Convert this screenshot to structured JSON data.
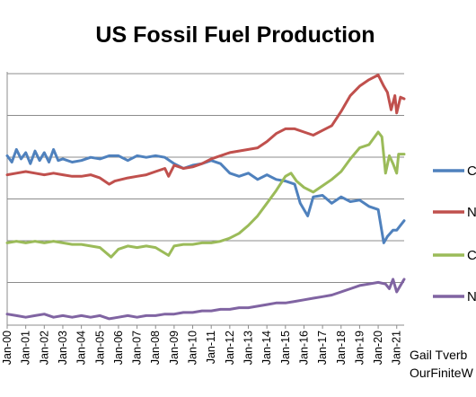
{
  "chart_data": {
    "type": "line",
    "title": "US Fossil Fuel Production",
    "xlabel": "",
    "ylabel": "",
    "x_tick_labels": [
      "Jan-00",
      "Jan-01",
      "Jan-02",
      "Jan-03",
      "Jan-04",
      "Jan-05",
      "Jan-06",
      "Jan-07",
      "Jan-08",
      "Jan-09",
      "Jan-10",
      "Jan-11",
      "Jan-12",
      "Jan-13",
      "Jan-14",
      "Jan-15",
      "Jan-16",
      "Jan-17",
      "Jan-18",
      "Jan-19",
      "Jan-20",
      "Jan-21"
    ],
    "x_range": [
      2000.0,
      2021.4
    ],
    "y_gridlines": 6,
    "grid": "horizontal",
    "legend_position": "right",
    "series": [
      {
        "name": "C",
        "color": "#4f81bd",
        "values": [
          [
            2000.0,
            4.35
          ],
          [
            2000.25,
            4.15
          ],
          [
            2000.5,
            4.55
          ],
          [
            2000.75,
            4.25
          ],
          [
            2001.0,
            4.45
          ],
          [
            2001.25,
            4.1
          ],
          [
            2001.5,
            4.5
          ],
          [
            2001.75,
            4.2
          ],
          [
            2002.0,
            4.45
          ],
          [
            2002.25,
            4.15
          ],
          [
            2002.5,
            4.55
          ],
          [
            2002.75,
            4.2
          ],
          [
            2003.0,
            4.25
          ],
          [
            2003.5,
            4.15
          ],
          [
            2004.0,
            4.2
          ],
          [
            2004.5,
            4.3
          ],
          [
            2005.0,
            4.25
          ],
          [
            2005.5,
            4.35
          ],
          [
            2006.0,
            4.35
          ],
          [
            2006.5,
            4.2
          ],
          [
            2007.0,
            4.35
          ],
          [
            2007.5,
            4.3
          ],
          [
            2008.0,
            4.35
          ],
          [
            2008.5,
            4.3
          ],
          [
            2009.0,
            4.1
          ],
          [
            2009.5,
            3.95
          ],
          [
            2010.0,
            4.05
          ],
          [
            2010.5,
            4.1
          ],
          [
            2011.0,
            4.2
          ],
          [
            2011.5,
            4.1
          ],
          [
            2012.0,
            3.8
          ],
          [
            2012.5,
            3.7
          ],
          [
            2013.0,
            3.8
          ],
          [
            2013.5,
            3.6
          ],
          [
            2014.0,
            3.75
          ],
          [
            2014.5,
            3.6
          ],
          [
            2015.0,
            3.55
          ],
          [
            2015.5,
            3.45
          ],
          [
            2015.8,
            2.85
          ],
          [
            2016.2,
            2.45
          ],
          [
            2016.5,
            3.05
          ],
          [
            2017.0,
            3.1
          ],
          [
            2017.5,
            2.85
          ],
          [
            2018.0,
            3.05
          ],
          [
            2018.5,
            2.9
          ],
          [
            2019.0,
            2.95
          ],
          [
            2019.5,
            2.75
          ],
          [
            2020.0,
            2.65
          ],
          [
            2020.3,
            1.6
          ],
          [
            2020.5,
            1.8
          ],
          [
            2020.8,
            2.0
          ],
          [
            2021.0,
            2.0
          ],
          [
            2021.4,
            2.3
          ]
        ]
      },
      {
        "name": "N",
        "color": "#c0504d",
        "values": [
          [
            2000.0,
            3.75
          ],
          [
            2000.5,
            3.8
          ],
          [
            2001.0,
            3.85
          ],
          [
            2001.5,
            3.8
          ],
          [
            2002.0,
            3.75
          ],
          [
            2002.5,
            3.8
          ],
          [
            2003.0,
            3.75
          ],
          [
            2003.5,
            3.7
          ],
          [
            2004.0,
            3.7
          ],
          [
            2004.5,
            3.75
          ],
          [
            2005.0,
            3.65
          ],
          [
            2005.5,
            3.45
          ],
          [
            2005.8,
            3.55
          ],
          [
            2006.5,
            3.65
          ],
          [
            2007.0,
            3.7
          ],
          [
            2007.5,
            3.75
          ],
          [
            2008.0,
            3.85
          ],
          [
            2008.5,
            3.95
          ],
          [
            2008.7,
            3.7
          ],
          [
            2009.0,
            4.05
          ],
          [
            2009.5,
            3.95
          ],
          [
            2010.0,
            4.0
          ],
          [
            2010.5,
            4.1
          ],
          [
            2011.0,
            4.25
          ],
          [
            2011.5,
            4.35
          ],
          [
            2012.0,
            4.45
          ],
          [
            2012.5,
            4.5
          ],
          [
            2013.0,
            4.55
          ],
          [
            2013.5,
            4.6
          ],
          [
            2014.0,
            4.8
          ],
          [
            2014.5,
            5.05
          ],
          [
            2015.0,
            5.2
          ],
          [
            2015.5,
            5.2
          ],
          [
            2016.0,
            5.1
          ],
          [
            2016.5,
            5.0
          ],
          [
            2017.0,
            5.15
          ],
          [
            2017.5,
            5.3
          ],
          [
            2018.0,
            5.75
          ],
          [
            2018.5,
            6.25
          ],
          [
            2019.0,
            6.55
          ],
          [
            2019.5,
            6.75
          ],
          [
            2020.0,
            6.9
          ],
          [
            2020.3,
            6.55
          ],
          [
            2020.5,
            6.35
          ],
          [
            2020.7,
            5.8
          ],
          [
            2020.9,
            6.25
          ],
          [
            2021.0,
            5.7
          ],
          [
            2021.2,
            6.2
          ],
          [
            2021.4,
            6.15
          ]
        ]
      },
      {
        "name": "C",
        "color": "#9bbb59",
        "values": [
          [
            2000.0,
            1.6
          ],
          [
            2000.5,
            1.65
          ],
          [
            2001.0,
            1.6
          ],
          [
            2001.5,
            1.65
          ],
          [
            2002.0,
            1.6
          ],
          [
            2002.5,
            1.65
          ],
          [
            2003.0,
            1.6
          ],
          [
            2003.5,
            1.55
          ],
          [
            2004.0,
            1.55
          ],
          [
            2004.5,
            1.5
          ],
          [
            2005.0,
            1.45
          ],
          [
            2005.6,
            1.15
          ],
          [
            2006.0,
            1.4
          ],
          [
            2006.5,
            1.5
          ],
          [
            2007.0,
            1.45
          ],
          [
            2007.5,
            1.5
          ],
          [
            2008.0,
            1.45
          ],
          [
            2008.7,
            1.2
          ],
          [
            2009.0,
            1.5
          ],
          [
            2009.5,
            1.55
          ],
          [
            2010.0,
            1.55
          ],
          [
            2010.5,
            1.6
          ],
          [
            2011.0,
            1.6
          ],
          [
            2011.5,
            1.65
          ],
          [
            2012.0,
            1.75
          ],
          [
            2012.5,
            1.9
          ],
          [
            2013.0,
            2.15
          ],
          [
            2013.5,
            2.45
          ],
          [
            2014.0,
            2.85
          ],
          [
            2014.5,
            3.25
          ],
          [
            2015.0,
            3.7
          ],
          [
            2015.3,
            3.8
          ],
          [
            2015.6,
            3.55
          ],
          [
            2016.0,
            3.35
          ],
          [
            2016.5,
            3.2
          ],
          [
            2017.0,
            3.4
          ],
          [
            2017.5,
            3.6
          ],
          [
            2018.0,
            3.85
          ],
          [
            2018.5,
            4.25
          ],
          [
            2019.0,
            4.6
          ],
          [
            2019.5,
            4.7
          ],
          [
            2020.0,
            5.1
          ],
          [
            2020.2,
            4.95
          ],
          [
            2020.4,
            3.8
          ],
          [
            2020.6,
            4.35
          ],
          [
            2020.8,
            4.1
          ],
          [
            2021.0,
            3.8
          ],
          [
            2021.1,
            4.4
          ],
          [
            2021.4,
            4.4
          ]
        ]
      },
      {
        "name": "N",
        "color": "#8064a2",
        "values": [
          [
            2000.0,
            -0.65
          ],
          [
            2000.5,
            -0.7
          ],
          [
            2001.0,
            -0.75
          ],
          [
            2001.5,
            -0.7
          ],
          [
            2002.0,
            -0.65
          ],
          [
            2002.5,
            -0.75
          ],
          [
            2003.0,
            -0.7
          ],
          [
            2003.5,
            -0.75
          ],
          [
            2004.0,
            -0.7
          ],
          [
            2004.5,
            -0.75
          ],
          [
            2005.0,
            -0.7
          ],
          [
            2005.5,
            -0.8
          ],
          [
            2006.0,
            -0.75
          ],
          [
            2006.5,
            -0.7
          ],
          [
            2007.0,
            -0.75
          ],
          [
            2007.5,
            -0.7
          ],
          [
            2008.0,
            -0.7
          ],
          [
            2008.5,
            -0.65
          ],
          [
            2009.0,
            -0.65
          ],
          [
            2009.5,
            -0.6
          ],
          [
            2010.0,
            -0.6
          ],
          [
            2010.5,
            -0.55
          ],
          [
            2011.0,
            -0.55
          ],
          [
            2011.5,
            -0.5
          ],
          [
            2012.0,
            -0.5
          ],
          [
            2012.5,
            -0.45
          ],
          [
            2013.0,
            -0.45
          ],
          [
            2013.5,
            -0.4
          ],
          [
            2014.0,
            -0.35
          ],
          [
            2014.5,
            -0.3
          ],
          [
            2015.0,
            -0.3
          ],
          [
            2015.5,
            -0.25
          ],
          [
            2016.0,
            -0.2
          ],
          [
            2016.5,
            -0.15
          ],
          [
            2017.0,
            -0.1
          ],
          [
            2017.5,
            -0.05
          ],
          [
            2018.0,
            0.05
          ],
          [
            2018.5,
            0.15
          ],
          [
            2019.0,
            0.25
          ],
          [
            2019.5,
            0.3
          ],
          [
            2020.0,
            0.35
          ],
          [
            2020.4,
            0.3
          ],
          [
            2020.6,
            0.15
          ],
          [
            2020.8,
            0.45
          ],
          [
            2021.0,
            0.05
          ],
          [
            2021.4,
            0.45
          ]
        ]
      }
    ],
    "credit_lines": [
      "Gail Tverb",
      "OurFiniteW"
    ]
  }
}
